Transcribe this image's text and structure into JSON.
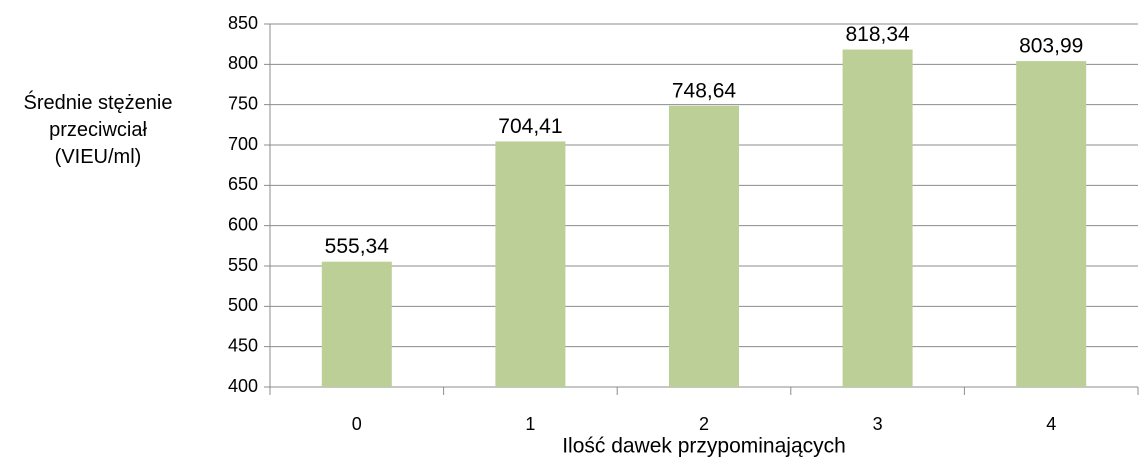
{
  "chart_data": {
    "type": "bar",
    "y_label": "Średnie stężenie przeciwciał (VIEU/ml)",
    "x_label": "Ilość dawek przypominających",
    "categories": [
      "0",
      "1",
      "2",
      "3",
      "4"
    ],
    "values": [
      555.34,
      704.41,
      748.64,
      818.34,
      803.99
    ],
    "value_labels": [
      "555,34",
      "704,41",
      "748,64",
      "818,34",
      "803,99"
    ],
    "color": "#bbcf96",
    "ylim": [
      400,
      850
    ],
    "yticks": [
      400,
      450,
      500,
      550,
      600,
      650,
      700,
      750,
      800,
      850
    ],
    "grid": true
  }
}
